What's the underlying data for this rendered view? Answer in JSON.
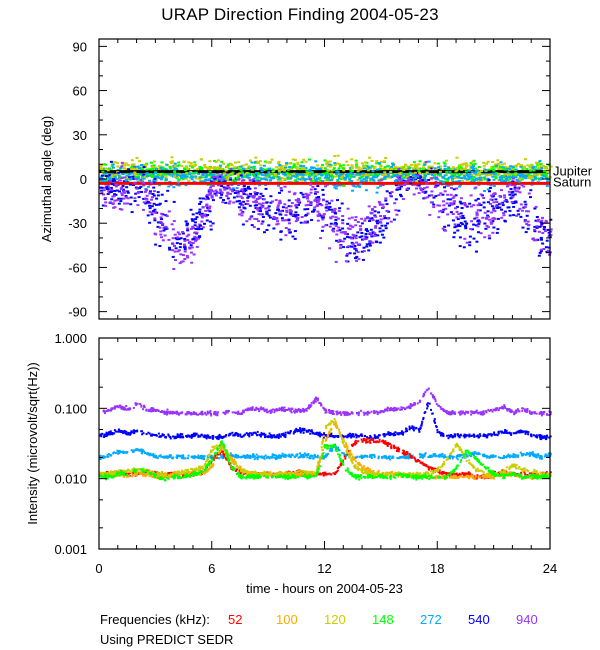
{
  "title": "URAP Direction Finding  2004-05-23",
  "footer": {
    "frequencies_label": "Frequencies (kHz):",
    "ephemeris_note": "Using PREDICT SEDR"
  },
  "chart_data": [
    {
      "type": "scatter",
      "title": "URAP Direction Finding  2004-05-23",
      "xlabel": "time - hours on 2004-05-23",
      "ylabel": "Azimuthal angle (deg)",
      "xlim": [
        0,
        24
      ],
      "ylim": [
        -95,
        95
      ],
      "xticks": [
        0,
        6,
        12,
        18,
        24
      ],
      "yticks": [
        90,
        60,
        30,
        0,
        -30,
        -60,
        -90
      ],
      "reference_lines": [
        {
          "name": "Jupiter",
          "value": 5,
          "color": "#000000"
        },
        {
          "name": "Saturn",
          "value": -3,
          "color": "#ff0000"
        }
      ],
      "series_note": "direction-finding scatter, azimuth by hour: cluster center (deg) and spread",
      "series": [
        {
          "name": "148",
          "color": "#00ff00",
          "center": [
            5,
            5,
            5,
            5,
            5,
            5,
            5,
            4,
            5,
            5,
            5,
            5,
            5,
            5,
            5,
            5,
            5,
            5,
            5,
            5,
            5,
            5,
            5,
            5,
            5
          ],
          "spread": [
            6,
            6,
            6,
            6,
            6,
            6,
            6,
            6,
            6,
            6,
            6,
            6,
            6,
            6,
            6,
            6,
            6,
            6,
            6,
            6,
            6,
            6,
            6,
            6,
            6
          ]
        },
        {
          "name": "120",
          "color": "#cccc00",
          "center": [
            5,
            6,
            6,
            6,
            7,
            6,
            5,
            6,
            7,
            6,
            6,
            6,
            6,
            6,
            6,
            6,
            6,
            6,
            6,
            6,
            6,
            6,
            6,
            6,
            6
          ],
          "spread": [
            6,
            7,
            7,
            7,
            7,
            7,
            6,
            7,
            8,
            7,
            7,
            7,
            7,
            7,
            7,
            7,
            7,
            7,
            7,
            7,
            7,
            7,
            7,
            7,
            7
          ]
        },
        {
          "name": "272",
          "color": "#00aaff",
          "center": [
            3,
            3,
            3,
            2,
            2,
            2,
            2,
            3,
            3,
            3,
            3,
            3,
            3,
            2,
            2,
            2,
            3,
            3,
            3,
            3,
            3,
            3,
            3,
            3,
            3
          ],
          "spread": [
            7,
            7,
            7,
            7,
            7,
            6,
            6,
            7,
            7,
            7,
            7,
            7,
            7,
            7,
            7,
            7,
            7,
            7,
            7,
            7,
            7,
            7,
            7,
            7,
            7
          ]
        },
        {
          "name": "540",
          "color": "#0000ff",
          "center": [
            -3,
            -8,
            -10,
            -20,
            -45,
            -30,
            -5,
            -8,
            -18,
            -20,
            -25,
            -15,
            -20,
            -45,
            -40,
            -25,
            -5,
            0,
            -10,
            -25,
            -30,
            -20,
            -10,
            -35,
            -40
          ],
          "spread": [
            12,
            14,
            16,
            18,
            12,
            12,
            8,
            12,
            14,
            16,
            16,
            14,
            14,
            14,
            14,
            16,
            8,
            6,
            18,
            18,
            18,
            16,
            12,
            12,
            12
          ]
        },
        {
          "name": "940",
          "color": "#9933ff",
          "center": [
            -5,
            -10,
            -8,
            -25,
            -50,
            -40,
            -5,
            -5,
            -15,
            -18,
            -20,
            -10,
            -25,
            -40,
            -40,
            -20,
            0,
            -2,
            -10,
            -20,
            -25,
            -15,
            -8,
            -30,
            -42
          ],
          "spread": [
            14,
            14,
            16,
            18,
            12,
            12,
            8,
            14,
            16,
            16,
            16,
            12,
            14,
            16,
            14,
            18,
            10,
            8,
            18,
            18,
            18,
            16,
            12,
            14,
            12
          ]
        }
      ]
    },
    {
      "type": "scatter",
      "xlabel": "time - hours on 2004-05-23",
      "ylabel": "Intensity (microvolt/sqrt(Hz))",
      "yscale": "log",
      "xlim": [
        0,
        24
      ],
      "ylim": [
        0.001,
        1.0
      ],
      "xticks": [
        0,
        6,
        12,
        18,
        24
      ],
      "ytick_labels": [
        "1.000",
        "0.100",
        "0.010",
        "0.001"
      ],
      "yticks": [
        1.0,
        0.1,
        0.01,
        0.001
      ],
      "x_hours": [
        0,
        0.5,
        1,
        1.5,
        2,
        2.5,
        3,
        3.5,
        4,
        4.5,
        5,
        5.5,
        6,
        6.5,
        7,
        7.5,
        8,
        8.5,
        9,
        9.5,
        10,
        10.5,
        11,
        11.5,
        12,
        12.5,
        13,
        13.5,
        14,
        14.5,
        15,
        15.5,
        16,
        16.5,
        17,
        17.5,
        18,
        18.5,
        19,
        19.5,
        20,
        20.5,
        21,
        21.5,
        22,
        22.5,
        23,
        23.5,
        24
      ],
      "series": [
        {
          "name": "940",
          "color": "#9933ff",
          "values": [
            0.09,
            0.1,
            0.11,
            0.1,
            0.12,
            0.1,
            0.095,
            0.09,
            0.09,
            0.088,
            0.088,
            0.088,
            0.088,
            0.088,
            0.09,
            0.09,
            0.1,
            0.1,
            0.095,
            0.1,
            0.1,
            0.095,
            0.1,
            0.14,
            0.095,
            0.09,
            0.088,
            0.088,
            0.088,
            0.09,
            0.095,
            0.1,
            0.1,
            0.11,
            0.13,
            0.2,
            0.11,
            0.09,
            0.09,
            0.09,
            0.09,
            0.09,
            0.1,
            0.11,
            0.09,
            0.1,
            0.09,
            0.088,
            0.088
          ]
        },
        {
          "name": "540",
          "color": "#0000ff",
          "values": [
            0.042,
            0.045,
            0.05,
            0.045,
            0.05,
            0.045,
            0.043,
            0.042,
            0.04,
            0.042,
            0.042,
            0.042,
            0.04,
            0.04,
            0.045,
            0.042,
            0.045,
            0.045,
            0.042,
            0.042,
            0.045,
            0.05,
            0.05,
            0.045,
            0.042,
            0.042,
            0.042,
            0.042,
            0.042,
            0.04,
            0.042,
            0.045,
            0.045,
            0.055,
            0.05,
            0.13,
            0.045,
            0.042,
            0.042,
            0.042,
            0.042,
            0.042,
            0.045,
            0.048,
            0.045,
            0.05,
            0.042,
            0.04,
            0.04
          ]
        },
        {
          "name": "272",
          "color": "#00aaff",
          "values": [
            0.021,
            0.022,
            0.025,
            0.024,
            0.027,
            0.024,
            0.021,
            0.021,
            0.021,
            0.021,
            0.021,
            0.021,
            0.021,
            0.021,
            0.022,
            0.021,
            0.022,
            0.021,
            0.021,
            0.021,
            0.022,
            0.022,
            0.022,
            0.021,
            0.021,
            0.03,
            0.023,
            0.021,
            0.021,
            0.022,
            0.021,
            0.021,
            0.021,
            0.021,
            0.022,
            0.022,
            0.022,
            0.021,
            0.021,
            0.022,
            0.024,
            0.022,
            0.021,
            0.021,
            0.022,
            0.023,
            0.023,
            0.021,
            0.023
          ]
        },
        {
          "name": "52",
          "color": "#ff0000",
          "values": [
            0.012,
            0.012,
            0.013,
            0.012,
            0.012,
            0.013,
            0.012,
            0.012,
            0.012,
            0.012,
            0.012,
            0.013,
            0.02,
            0.025,
            0.015,
            0.013,
            0.012,
            0.012,
            0.012,
            0.012,
            0.012,
            0.013,
            0.012,
            0.012,
            0.012,
            0.012,
            0.02,
            0.032,
            0.036,
            0.036,
            0.035,
            0.03,
            0.026,
            0.022,
            0.018,
            0.015,
            0.013,
            0.012,
            0.012,
            0.012,
            0.011,
            0.011,
            0.012,
            0.013,
            0.012,
            0.012,
            0.012,
            0.012,
            0.012
          ]
        },
        {
          "name": "100",
          "color": "#ffaa00",
          "values": [
            0.012,
            0.012,
            0.012,
            0.011,
            0.012,
            0.012,
            0.011,
            0.011,
            0.012,
            0.012,
            0.012,
            0.012,
            0.016,
            0.03,
            0.02,
            0.014,
            0.012,
            0.012,
            0.012,
            0.012,
            0.012,
            0.012,
            0.012,
            0.012,
            0.035,
            0.065,
            0.035,
            0.02,
            0.015,
            0.013,
            0.012,
            0.012,
            0.012,
            0.011,
            0.011,
            0.011,
            0.011,
            0.011,
            0.011,
            0.011,
            0.011,
            0.011,
            0.011,
            0.012,
            0.012,
            0.011,
            0.011,
            0.011,
            0.011
          ]
        },
        {
          "name": "120",
          "color": "#cccc00",
          "values": [
            0.012,
            0.012,
            0.013,
            0.013,
            0.014,
            0.013,
            0.012,
            0.012,
            0.012,
            0.013,
            0.014,
            0.015,
            0.028,
            0.03,
            0.018,
            0.014,
            0.012,
            0.012,
            0.012,
            0.012,
            0.012,
            0.013,
            0.013,
            0.012,
            0.055,
            0.07,
            0.03,
            0.016,
            0.013,
            0.012,
            0.012,
            0.012,
            0.012,
            0.012,
            0.012,
            0.012,
            0.014,
            0.02,
            0.032,
            0.02,
            0.014,
            0.012,
            0.012,
            0.013,
            0.016,
            0.014,
            0.013,
            0.012,
            0.012
          ]
        },
        {
          "name": "148",
          "color": "#00ff00",
          "values": [
            0.011,
            0.011,
            0.012,
            0.012,
            0.014,
            0.013,
            0.011,
            0.01,
            0.011,
            0.011,
            0.012,
            0.013,
            0.02,
            0.035,
            0.015,
            0.011,
            0.011,
            0.011,
            0.011,
            0.011,
            0.011,
            0.011,
            0.011,
            0.011,
            0.03,
            0.03,
            0.015,
            0.011,
            0.011,
            0.011,
            0.011,
            0.011,
            0.012,
            0.011,
            0.011,
            0.011,
            0.011,
            0.011,
            0.015,
            0.025,
            0.02,
            0.015,
            0.012,
            0.011,
            0.012,
            0.011,
            0.011,
            0.011,
            0.011
          ]
        }
      ]
    }
  ],
  "legend": [
    {
      "label": "52",
      "color": "#ff0000"
    },
    {
      "label": "100",
      "color": "#ffaa00"
    },
    {
      "label": "120",
      "color": "#cccc00"
    },
    {
      "label": "148",
      "color": "#00ff00"
    },
    {
      "label": "272",
      "color": "#00aaff"
    },
    {
      "label": "540",
      "color": "#0000ff"
    },
    {
      "label": "940",
      "color": "#9933ff"
    }
  ]
}
